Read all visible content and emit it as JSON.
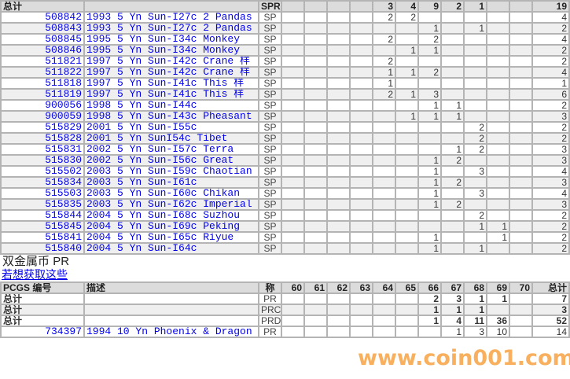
{
  "grade_columns": [
    "60",
    "61",
    "62",
    "63",
    "64",
    "65",
    "66",
    "67",
    "68",
    "69",
    "70"
  ],
  "top_table": {
    "summary": {
      "label": "总计",
      "grade": "SPR",
      "counts": [
        "",
        "",
        "",
        "",
        "3",
        "4",
        "9",
        "2",
        "1",
        "",
        ""
      ],
      "total": "19"
    },
    "rows": [
      {
        "id": "508842",
        "desc": "1993 5 Yn Sun-I27c 2 Pandas",
        "grade": "SP",
        "counts": [
          "",
          "",
          "",
          "",
          "2",
          "2",
          "",
          "",
          "",
          "",
          ""
        ],
        "total": "4"
      },
      {
        "id": "508843",
        "desc": "1993 5 Yn Sun-I27c 2 Pandas",
        "grade": "SP",
        "counts": [
          "",
          "",
          "",
          "",
          "",
          "",
          "1",
          "",
          "1",
          "",
          ""
        ],
        "total": "2"
      },
      {
        "id": "508845",
        "desc": "1995 5 Yn Sun-I34c Monkey",
        "grade": "SP",
        "counts": [
          "",
          "",
          "",
          "",
          "2",
          "",
          "2",
          "",
          "",
          "",
          ""
        ],
        "total": "4"
      },
      {
        "id": "508846",
        "desc": "1995 5 Yn Sun-I34c Monkey",
        "grade": "SP",
        "counts": [
          "",
          "",
          "",
          "",
          "",
          "1",
          "1",
          "",
          "",
          "",
          ""
        ],
        "total": "2"
      },
      {
        "id": "511821",
        "desc": "1997 5 Yn Sun-I42c Crane 样",
        "grade": "SP",
        "counts": [
          "",
          "",
          "",
          "",
          "2",
          "",
          "",
          "",
          "",
          "",
          ""
        ],
        "total": "2"
      },
      {
        "id": "511822",
        "desc": "1997 5 Yn Sun-I42c Crane 样",
        "grade": "SP",
        "counts": [
          "",
          "",
          "",
          "",
          "1",
          "1",
          "2",
          "",
          "",
          "",
          ""
        ],
        "total": "4"
      },
      {
        "id": "511818",
        "desc": "1997 5 Yn Sun-I41c This 样",
        "grade": "SP",
        "counts": [
          "",
          "",
          "",
          "",
          "1",
          "",
          "",
          "",
          "",
          "",
          ""
        ],
        "total": "1"
      },
      {
        "id": "511819",
        "desc": "1997 5 Yn Sun-I41c This 样",
        "grade": "SP",
        "counts": [
          "",
          "",
          "",
          "",
          "2",
          "1",
          "3",
          "",
          "",
          "",
          ""
        ],
        "total": "6"
      },
      {
        "id": "900056",
        "desc": "1998 5 Yn Sun-I44c",
        "grade": "SP",
        "counts": [
          "",
          "",
          "",
          "",
          "",
          "",
          "1",
          "1",
          "",
          "",
          ""
        ],
        "total": "2"
      },
      {
        "id": "900059",
        "desc": "1998 5 Yn Sun-I43c Pheasant",
        "grade": "SP",
        "counts": [
          "",
          "",
          "",
          "",
          "",
          "1",
          "1",
          "1",
          "",
          "",
          ""
        ],
        "total": "3"
      },
      {
        "id": "515829",
        "desc": "2001 5 Yn Sun-I55c",
        "grade": "SP",
        "counts": [
          "",
          "",
          "",
          "",
          "",
          "",
          "",
          "",
          "2",
          "",
          ""
        ],
        "total": "2"
      },
      {
        "id": "515828",
        "desc": "2001 5 Yn SunI54c Tibet",
        "grade": "SP",
        "counts": [
          "",
          "",
          "",
          "",
          "",
          "",
          "",
          "",
          "2",
          "",
          ""
        ],
        "total": "2"
      },
      {
        "id": "515831",
        "desc": "2002 5 Yn Sun-I57c Terra",
        "grade": "SP",
        "counts": [
          "",
          "",
          "",
          "",
          "",
          "",
          "",
          "1",
          "2",
          "",
          ""
        ],
        "total": "3"
      },
      {
        "id": "515830",
        "desc": "2002 5 Yn Sun-I56c Great",
        "grade": "SP",
        "counts": [
          "",
          "",
          "",
          "",
          "",
          "",
          "1",
          "2",
          "",
          "",
          ""
        ],
        "total": "3"
      },
      {
        "id": "515502",
        "desc": "2003 5 Yn Sun-I59c Chaotian",
        "grade": "SP",
        "counts": [
          "",
          "",
          "",
          "",
          "",
          "",
          "1",
          "",
          "3",
          "",
          ""
        ],
        "total": "4"
      },
      {
        "id": "515834",
        "desc": "2003 5 Yn Sun-I61c",
        "grade": "SP",
        "counts": [
          "",
          "",
          "",
          "",
          "",
          "",
          "1",
          "2",
          "",
          "",
          ""
        ],
        "total": "3"
      },
      {
        "id": "515503",
        "desc": "2003 5 Yn Sun-I60c Chikan",
        "grade": "SP",
        "counts": [
          "",
          "",
          "",
          "",
          "",
          "",
          "1",
          "",
          "3",
          "",
          ""
        ],
        "total": "4"
      },
      {
        "id": "515835",
        "desc": "2003 5 Yn Sun-I62c Imperial",
        "grade": "SP",
        "counts": [
          "",
          "",
          "",
          "",
          "",
          "",
          "1",
          "2",
          "",
          "",
          ""
        ],
        "total": "3"
      },
      {
        "id": "515844",
        "desc": "2004 5 Yn Sun-I68c Suzhou",
        "grade": "SP",
        "counts": [
          "",
          "",
          "",
          "",
          "",
          "",
          "",
          "",
          "2",
          "",
          ""
        ],
        "total": "2"
      },
      {
        "id": "515845",
        "desc": "2004 5 Yn Sun-I69c Peking",
        "grade": "SP",
        "counts": [
          "",
          "",
          "",
          "",
          "",
          "",
          "",
          "",
          "1",
          "1",
          ""
        ],
        "total": "2"
      },
      {
        "id": "515841",
        "desc": "2004 5 Yn Sun-I65c Riyue",
        "grade": "SP",
        "counts": [
          "",
          "",
          "",
          "",
          "",
          "",
          "1",
          "",
          "",
          "1",
          ""
        ],
        "total": "2"
      },
      {
        "id": "515840",
        "desc": "2004 5 Yn Sun-I64c",
        "grade": "SP",
        "counts": [
          "",
          "",
          "",
          "",
          "",
          "",
          "1",
          "",
          "1",
          "",
          ""
        ],
        "total": "2"
      }
    ]
  },
  "section": {
    "title": "双金属币",
    "grade": "PR",
    "link": "若想获取这些"
  },
  "bottom_table": {
    "headers": {
      "id": "PCGS 编号",
      "desc": "描述",
      "grade": "称",
      "total": "总计"
    },
    "summaries": [
      {
        "label": "总计",
        "grade": "PR",
        "counts": [
          "",
          "",
          "",
          "",
          "",
          "",
          "2",
          "3",
          "1",
          "1",
          ""
        ],
        "total": "7"
      },
      {
        "label": "总计",
        "grade": "PRC",
        "counts": [
          "",
          "",
          "",
          "",
          "",
          "",
          "1",
          "1",
          "1",
          "",
          ""
        ],
        "total": "3"
      },
      {
        "label": "总计",
        "grade": "PRD",
        "counts": [
          "",
          "",
          "",
          "",
          "",
          "",
          "1",
          "4",
          "11",
          "36",
          ""
        ],
        "total": "52"
      }
    ],
    "rows": [
      {
        "id": "734397",
        "desc": "1994 10 Yn Phoenix & Dragon",
        "grade": "PR",
        "counts": [
          "",
          "",
          "",
          "",
          "",
          "",
          "",
          "1",
          "3",
          "10",
          ""
        ],
        "total": "14"
      }
    ]
  },
  "watermark": "www.coin001.com",
  "colors": {
    "link": "#0000ee",
    "grid": "#b4b4b4",
    "alt_row": "#efefef",
    "header": "#dcdcdc",
    "watermark": "#f59628"
  }
}
